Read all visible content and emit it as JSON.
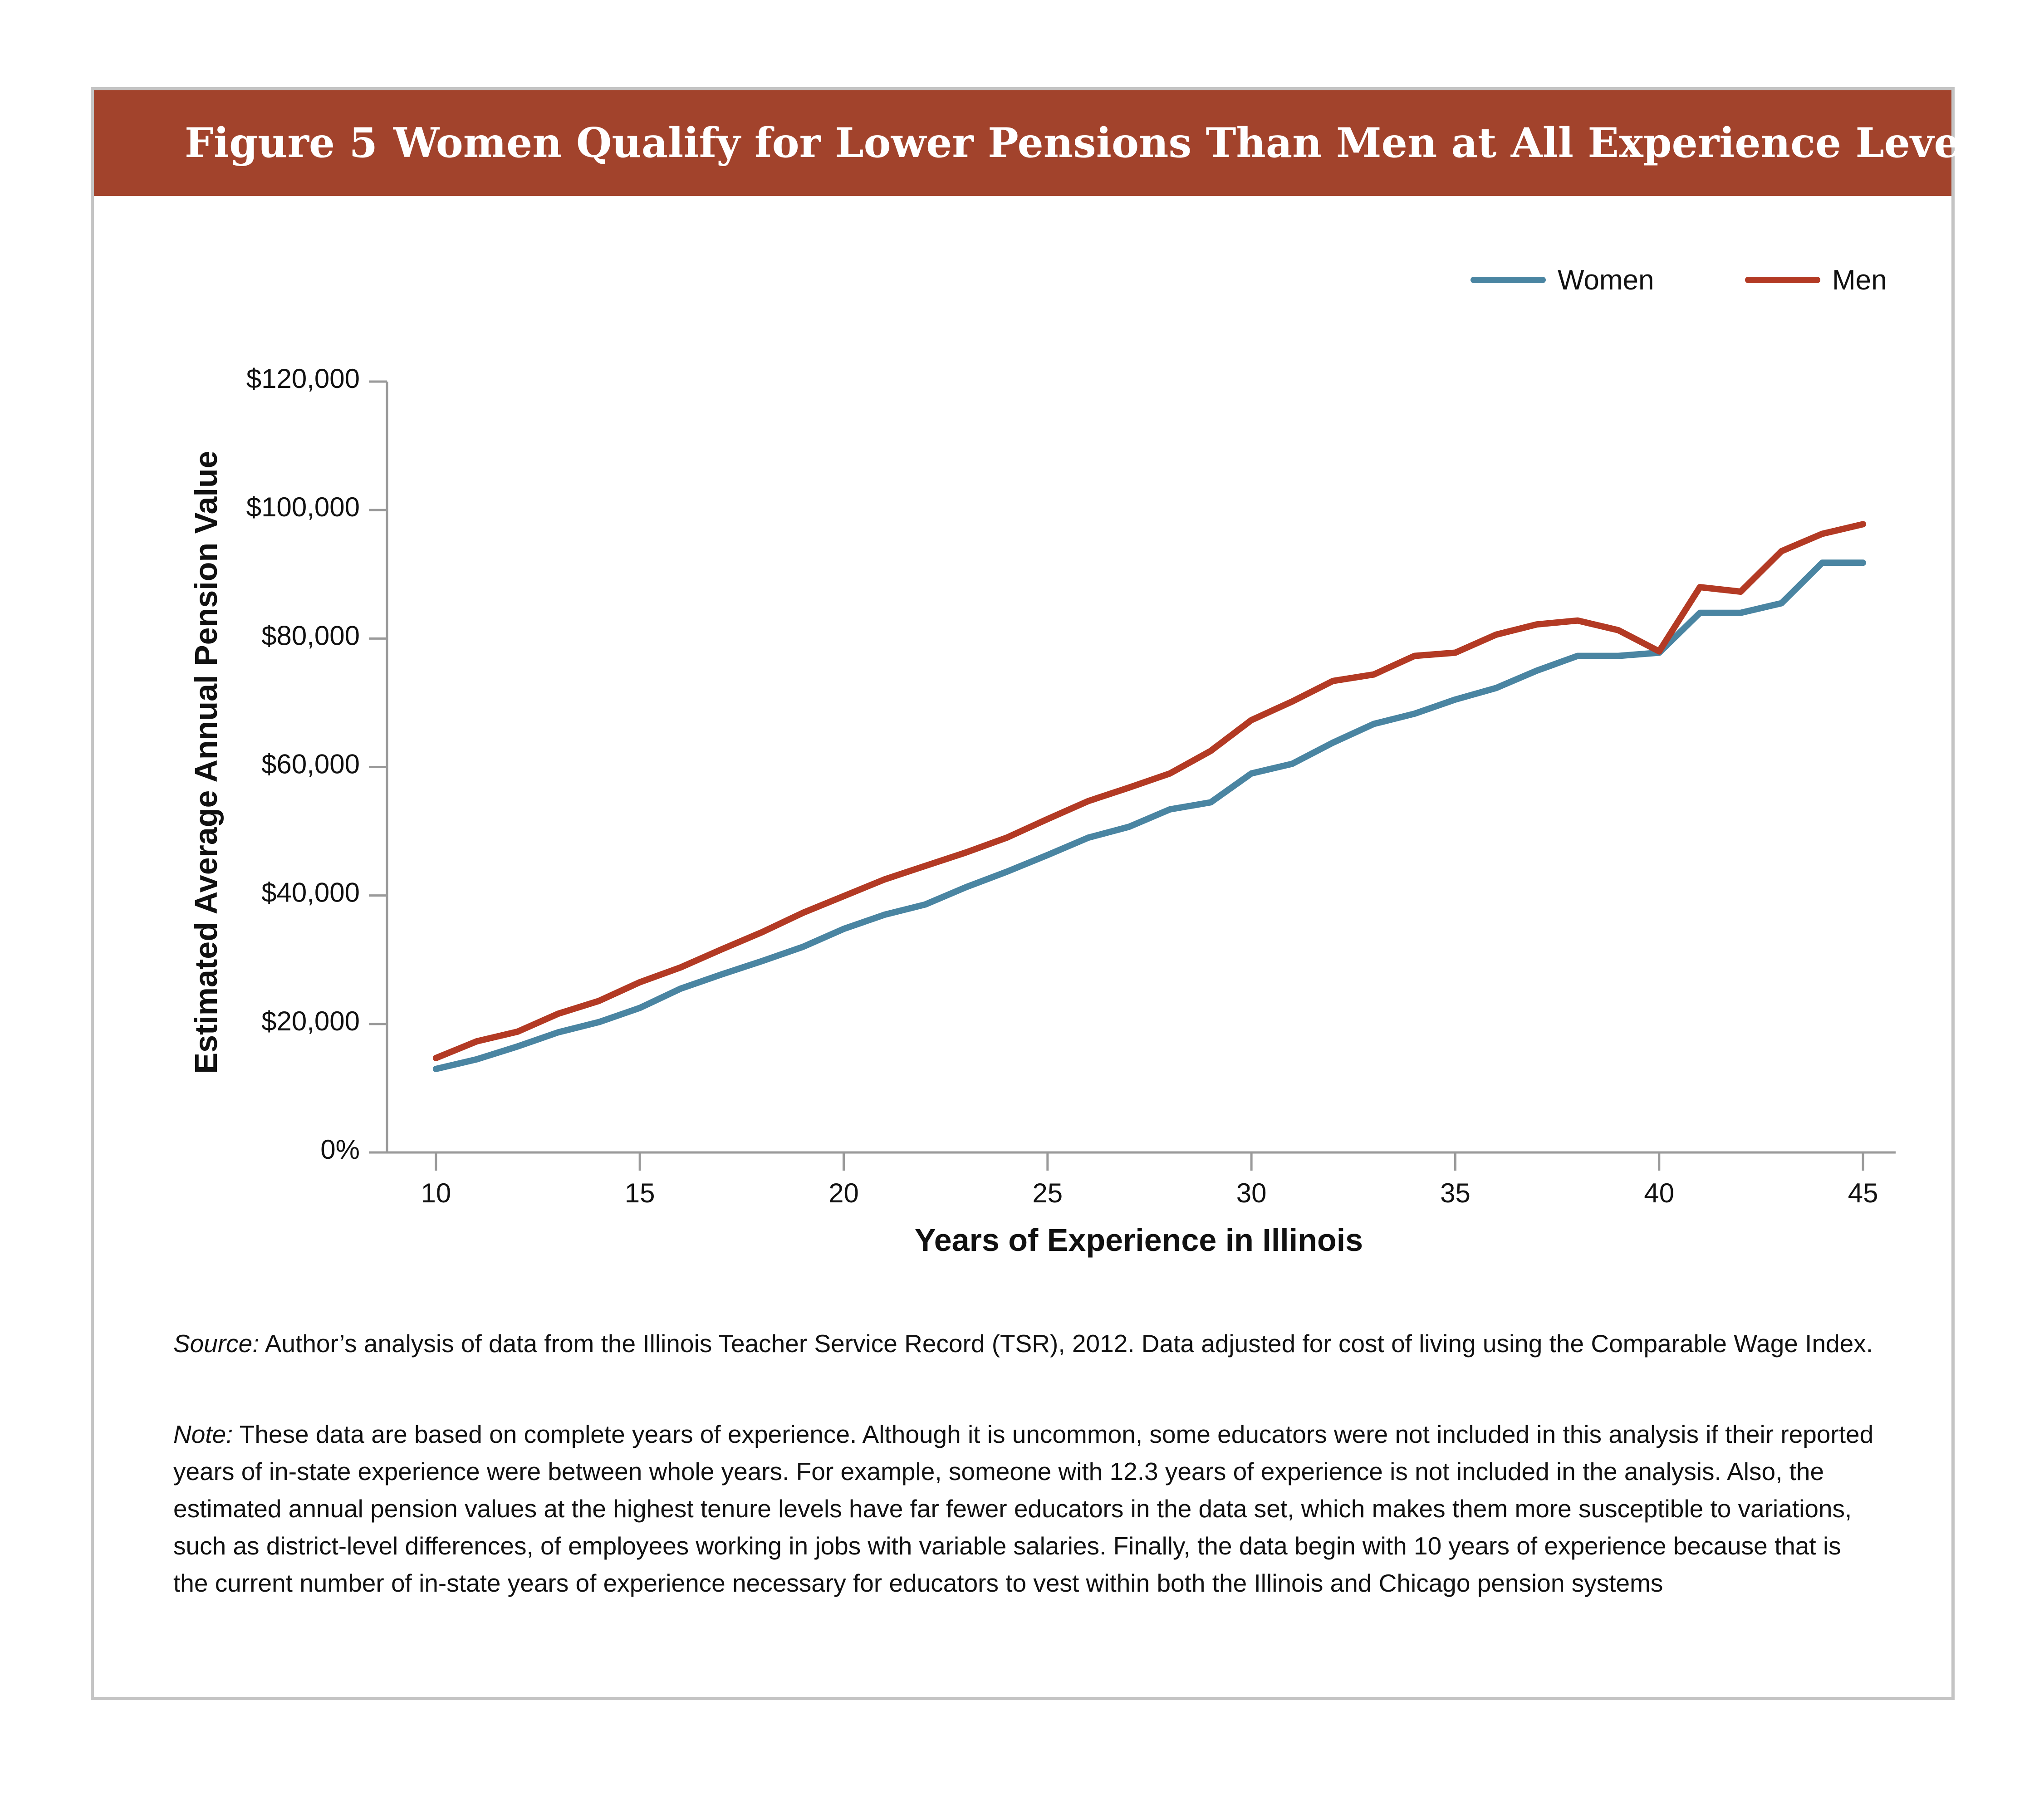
{
  "figure": {
    "label": "Figure 5",
    "title": "Women Qualify for Lower Pensions Than Men at All Experience Levels"
  },
  "colors": {
    "women": "#4a85a2",
    "men": "#b33a24",
    "header": "#a2432c",
    "axis": "#9a9a9a"
  },
  "chart_data": {
    "type": "line",
    "xlabel": "Years of Experience in Illinois",
    "ylabel": "Estimated Average Annual Pension Value",
    "xlim": [
      8.8,
      45.8
    ],
    "ylim": [
      0,
      120000
    ],
    "x_ticks": [
      10,
      15,
      20,
      25,
      30,
      35,
      40,
      45
    ],
    "y_ticks": [
      {
        "value": 0,
        "label": "0%"
      },
      {
        "value": 20000,
        "label": "$20,000"
      },
      {
        "value": 40000,
        "label": "$40,000"
      },
      {
        "value": 60000,
        "label": "$60,000"
      },
      {
        "value": 80000,
        "label": "$80,000"
      },
      {
        "value": 100000,
        "label": "$100,000"
      },
      {
        "value": 120000,
        "label": "$120,000"
      }
    ],
    "legend": "top-right",
    "grid": false,
    "x": [
      10,
      11,
      12,
      13,
      14,
      15,
      16,
      17,
      18,
      19,
      20,
      21,
      22,
      23,
      24,
      25,
      26,
      27,
      28,
      29,
      30,
      31,
      32,
      33,
      34,
      35,
      36,
      37,
      38,
      39,
      40,
      41,
      42,
      43,
      44,
      45
    ],
    "series": [
      {
        "name": "Women",
        "values": [
          13000,
          14500,
          16500,
          18700,
          20300,
          22500,
          25500,
          27700,
          29800,
          32000,
          34800,
          37000,
          38600,
          41300,
          43700,
          46300,
          49000,
          50700,
          53400,
          54500,
          59000,
          60500,
          63800,
          66700,
          68300,
          70500,
          72300,
          75000,
          77300,
          77300,
          77800,
          84000,
          84000,
          85500,
          91800,
          91800
        ]
      },
      {
        "name": "Men",
        "values": [
          14700,
          17300,
          18800,
          21600,
          23600,
          26500,
          28800,
          31600,
          34300,
          37300,
          39900,
          42500,
          44600,
          46700,
          49000,
          51900,
          54700,
          56800,
          59000,
          62500,
          67300,
          70200,
          73400,
          74400,
          77300,
          77800,
          80600,
          82200,
          82800,
          81300,
          78000,
          88000,
          87300,
          93600,
          96300,
          97800
        ]
      }
    ]
  },
  "notes": {
    "source_label": "Source:",
    "source_text": " Author’s analysis of data from the Illinois Teacher Service Record (TSR), 2012. Data adjusted for cost of living using the Comparable Wage Index.",
    "note_label": "Note:",
    "note_text": " These data are based on complete years of experience. Although it is uncommon, some educators were not included in this analysis if their reported years of in-state experience were between whole years. For example, someone with 12.3 years of experience is not included in the analysis. Also, the estimated annual pension values at the highest tenure levels have far fewer educators in the data set, which makes them more susceptible to variations, such as district-level differences, of employees working in jobs with variable salaries. Finally, the data begin with 10 years of experience because that is the current number of in-state years of experience necessary for educators to vest within both the Illinois and Chicago pension systems"
  }
}
